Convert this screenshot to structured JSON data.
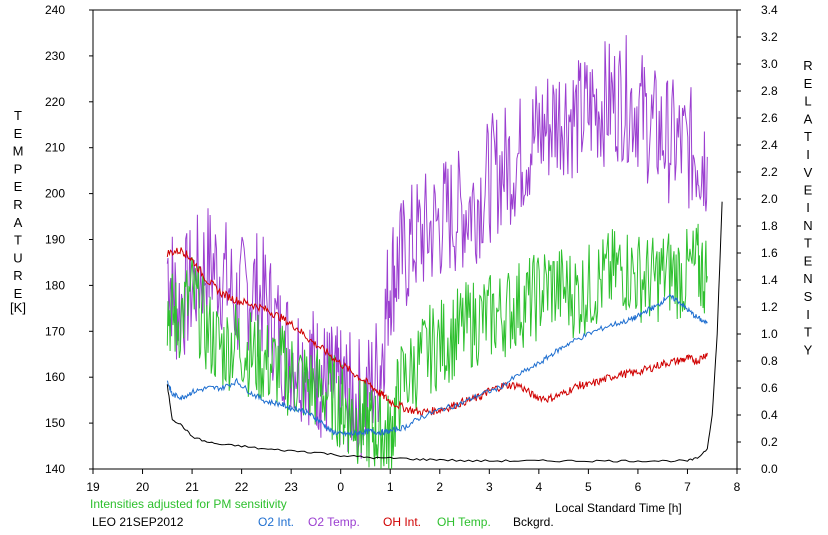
{
  "chart_data": {
    "type": "line",
    "title": "",
    "left_axis": {
      "label_letters": [
        "T",
        "E",
        "M",
        "P",
        "E",
        "R",
        "A",
        "T",
        "U",
        "R",
        "E"
      ],
      "unit": "[K]",
      "range": [
        140,
        240
      ],
      "ticks": [
        "140",
        "150",
        "160",
        "170",
        "180",
        "190",
        "200",
        "210",
        "220",
        "230",
        "240"
      ]
    },
    "right_axis": {
      "label_letters_1": [
        "R",
        "E",
        "L",
        "A",
        "T",
        "I",
        "V",
        "E"
      ],
      "label_letters_2": [
        "I",
        "N",
        "T",
        "E",
        "N",
        "S",
        "I",
        "T",
        "Y"
      ],
      "range": [
        0.0,
        3.4
      ],
      "ticks": [
        "0.0",
        "0.2",
        "0.4",
        "0.6",
        "0.8",
        "1.0",
        "1.2",
        "1.4",
        "1.6",
        "1.8",
        "2.0",
        "2.2",
        "2.4",
        "2.6",
        "2.8",
        "3.0",
        "3.2",
        "3.4"
      ]
    },
    "x_axis": {
      "label": "Local Standard Time [h]",
      "range": [
        19,
        32
      ],
      "ticks": [
        "19",
        "20",
        "21",
        "22",
        "23",
        "0",
        "1",
        "2",
        "3",
        "4",
        "5",
        "6",
        "7",
        "8"
      ]
    },
    "note": "Intensities adjusted for PM sensitivity",
    "station": "LEO 21SEP2012",
    "grid": false,
    "legend_position": "bottom",
    "series": [
      {
        "name": "O2 Int.",
        "axis": "right",
        "color": "#1f6fd0",
        "x": [
          20.5,
          20.6,
          20.8,
          21.0,
          21.3,
          21.6,
          21.9,
          22.2,
          22.5,
          22.8,
          23.0,
          23.2,
          23.4,
          23.6,
          23.8,
          24.0,
          24.2,
          24.4,
          24.6,
          24.8,
          25.0,
          25.3,
          25.6,
          26.0,
          26.4,
          26.8,
          27.2,
          27.6,
          28.0,
          28.3,
          28.6,
          29.0,
          29.4,
          29.8,
          30.0,
          30.2,
          30.4,
          30.6,
          30.8,
          31.0,
          31.2,
          31.4
        ],
        "values": [
          0.65,
          0.55,
          0.53,
          0.57,
          0.6,
          0.6,
          0.65,
          0.56,
          0.5,
          0.48,
          0.45,
          0.44,
          0.4,
          0.35,
          0.28,
          0.26,
          0.26,
          0.27,
          0.28,
          0.27,
          0.28,
          0.31,
          0.38,
          0.44,
          0.48,
          0.55,
          0.6,
          0.7,
          0.78,
          0.86,
          0.93,
          1.0,
          1.06,
          1.1,
          1.13,
          1.18,
          1.21,
          1.28,
          1.25,
          1.18,
          1.12,
          1.08
        ]
      },
      {
        "name": "O2 Temp.",
        "axis": "left",
        "color": "#9b3fd0",
        "x": [
          20.5,
          20.7,
          21.0,
          21.3,
          21.6,
          21.9,
          22.2,
          22.5,
          22.8,
          23.1,
          23.4,
          23.6,
          23.8,
          24.0,
          24.2,
          24.5,
          24.8,
          25.0,
          25.2,
          25.5,
          25.8,
          26.1,
          26.4,
          26.7,
          27.0,
          27.3,
          27.6,
          27.9,
          28.2,
          28.5,
          28.8,
          29.1,
          29.4,
          29.7,
          30.0,
          30.3,
          30.6,
          30.9,
          31.2,
          31.4
        ],
        "values": [
          185,
          175,
          180,
          185,
          183,
          176,
          180,
          176,
          168,
          165,
          163,
          160,
          158,
          157,
          156,
          155,
          163,
          182,
          185,
          190,
          192,
          195,
          196,
          198,
          203,
          206,
          208,
          212,
          215,
          218,
          216,
          219,
          220,
          221,
          219,
          214,
          212,
          210,
          209,
          208
        ]
      },
      {
        "name": "OH Int.",
        "axis": "right",
        "color": "#d00000",
        "x": [
          20.5,
          20.8,
          21.0,
          21.3,
          21.6,
          21.9,
          22.2,
          22.5,
          22.8,
          23.1,
          23.4,
          23.7,
          24.0,
          24.3,
          24.6,
          24.8,
          25.0,
          25.3,
          25.6,
          25.9,
          26.2,
          26.5,
          26.8,
          27.0,
          27.3,
          27.6,
          27.9,
          28.2,
          28.5,
          28.8,
          29.0,
          29.3,
          29.6,
          29.9,
          30.2,
          30.5,
          30.8,
          31.0,
          31.2,
          31.4
        ],
        "values": [
          1.6,
          1.62,
          1.55,
          1.4,
          1.3,
          1.25,
          1.22,
          1.18,
          1.12,
          1.05,
          0.95,
          0.87,
          0.78,
          0.7,
          0.62,
          0.56,
          0.5,
          0.45,
          0.42,
          0.43,
          0.46,
          0.5,
          0.53,
          0.58,
          0.62,
          0.62,
          0.54,
          0.52,
          0.56,
          0.62,
          0.62,
          0.66,
          0.7,
          0.71,
          0.74,
          0.78,
          0.8,
          0.82,
          0.8,
          0.86
        ]
      },
      {
        "name": "OH Temp.",
        "axis": "left",
        "color": "#2ec02e",
        "x": [
          20.5,
          20.7,
          21.0,
          21.3,
          21.6,
          21.9,
          22.2,
          22.5,
          22.8,
          23.1,
          23.4,
          23.7,
          24.0,
          24.2,
          24.4,
          24.6,
          24.8,
          25.0,
          25.2,
          25.5,
          25.8,
          26.1,
          26.4,
          26.7,
          27.0,
          27.3,
          27.6,
          27.9,
          28.2,
          28.5,
          28.8,
          29.1,
          29.4,
          29.7,
          30.0,
          30.3,
          30.6,
          30.9,
          31.2,
          31.4
        ],
        "values": [
          175,
          172,
          178,
          170,
          166,
          168,
          165,
          163,
          162,
          160,
          158,
          157,
          154,
          152,
          150,
          149,
          148,
          147,
          158,
          162,
          166,
          168,
          170,
          172,
          173,
          174,
          176,
          177,
          180,
          179,
          178,
          180,
          182,
          184,
          182,
          181,
          183,
          182,
          184,
          182
        ]
      },
      {
        "name": "Bckgrd.",
        "axis": "right",
        "color": "#000000",
        "x": [
          20.5,
          20.6,
          20.8,
          21.0,
          21.3,
          21.6,
          22.0,
          22.4,
          22.8,
          23.2,
          23.6,
          24.0,
          24.4,
          24.8,
          25.2,
          25.6,
          26.0,
          26.5,
          27.0,
          27.5,
          28.0,
          28.5,
          29.0,
          29.5,
          30.0,
          30.5,
          31.0,
          31.2,
          31.4,
          31.5,
          31.6,
          31.7
        ],
        "values": [
          0.62,
          0.37,
          0.32,
          0.24,
          0.2,
          0.18,
          0.17,
          0.15,
          0.14,
          0.13,
          0.12,
          0.1,
          0.09,
          0.08,
          0.08,
          0.07,
          0.07,
          0.06,
          0.06,
          0.06,
          0.06,
          0.06,
          0.06,
          0.06,
          0.06,
          0.06,
          0.06,
          0.08,
          0.15,
          0.4,
          1.0,
          1.98
        ]
      }
    ]
  }
}
